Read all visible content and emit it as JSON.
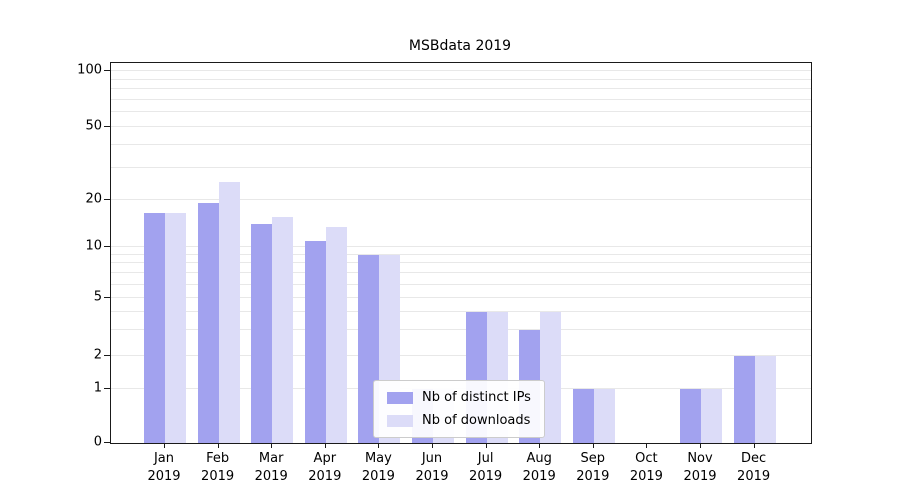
{
  "chart_data": {
    "type": "bar",
    "title": "MSBdata 2019",
    "categories": [
      "Jan 2019",
      "Feb 2019",
      "Mar 2019",
      "Apr 2019",
      "May 2019",
      "Jun 2019",
      "Jul 2019",
      "Aug 2019",
      "Sep 2019",
      "Oct 2019",
      "Nov 2019",
      "Dec 2019"
    ],
    "series": [
      {
        "name": "Nb of distinct IPs",
        "color": "#a2a2ef",
        "values": [
          16.5,
          19,
          14,
          11,
          9,
          1,
          4,
          3,
          1,
          0,
          1,
          2
        ]
      },
      {
        "name": "Nb of downloads",
        "color": "#dcdcf8",
        "values": [
          16.5,
          25,
          15.5,
          13.5,
          9,
          1,
          4,
          4,
          1,
          0,
          1,
          2
        ]
      }
    ],
    "yscale": "symlog",
    "yticks": [
      0,
      1,
      2,
      5,
      10,
      20,
      50,
      100
    ],
    "ylim": [
      0,
      120
    ],
    "xlabel": "",
    "ylabel": "",
    "grid": "horizontal",
    "legend_position": "inside-bottom-center"
  }
}
